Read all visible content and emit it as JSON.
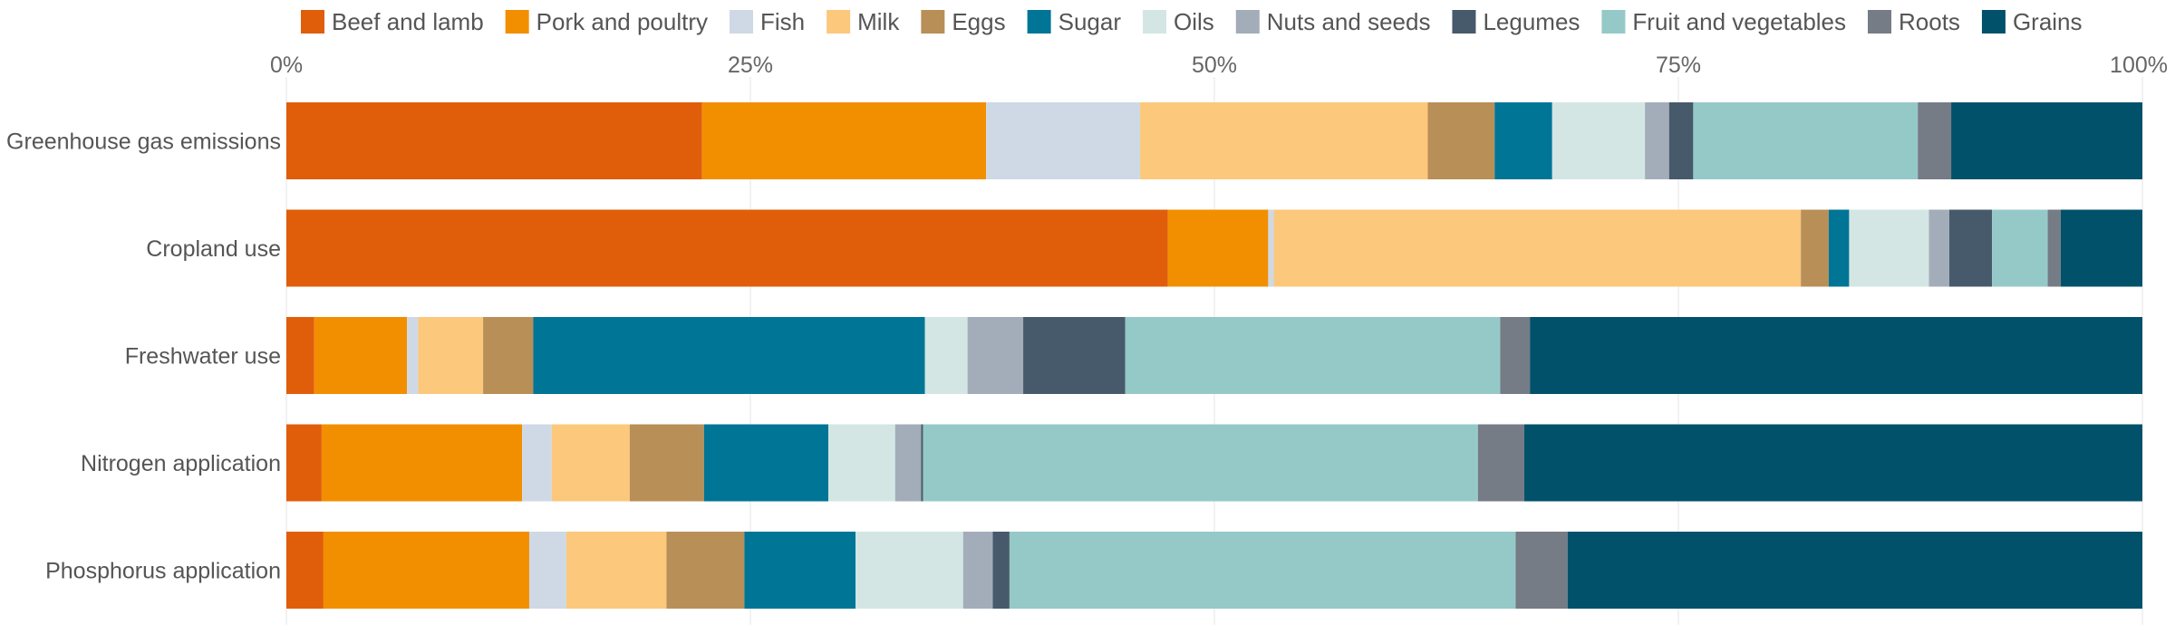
{
  "chart_data": {
    "type": "bar",
    "orientation": "horizontal",
    "stacked": "percent",
    "xlim": [
      0,
      100
    ],
    "x_ticks": [
      "0%",
      "25%",
      "50%",
      "75%",
      "100%"
    ],
    "x_tick_values": [
      0,
      25,
      50,
      75,
      100
    ],
    "legend_position": "top",
    "grid": true,
    "categories": [
      "Greenhouse gas emissions",
      "Cropland use",
      "Freshwater use",
      "Nitrogen application",
      "Phosphorus application"
    ],
    "series": [
      {
        "name": "Beef and lamb",
        "color": "#e05e0a",
        "values": [
          22.4,
          47.5,
          1.5,
          1.9,
          2.0
        ]
      },
      {
        "name": "Pork and poultry",
        "color": "#f28f00",
        "values": [
          15.3,
          5.4,
          5.0,
          10.8,
          11.1
        ]
      },
      {
        "name": "Fish",
        "color": "#cfd9e5",
        "values": [
          8.3,
          0.3,
          0.6,
          1.6,
          2.0
        ]
      },
      {
        "name": "Milk",
        "color": "#fbc87c",
        "values": [
          15.5,
          28.4,
          3.5,
          4.2,
          5.4
        ]
      },
      {
        "name": "Eggs",
        "color": "#b88f57",
        "values": [
          3.6,
          1.5,
          2.7,
          4.0,
          4.2
        ]
      },
      {
        "name": "Sugar",
        "color": "#007596",
        "values": [
          3.1,
          1.1,
          21.1,
          6.7,
          6.0
        ]
      },
      {
        "name": "Oils",
        "color": "#d3e6e4",
        "values": [
          5.0,
          4.3,
          2.3,
          3.6,
          5.8
        ]
      },
      {
        "name": "Nuts and seeds",
        "color": "#a2adb9",
        "values": [
          1.3,
          1.1,
          3.0,
          1.4,
          1.6
        ]
      },
      {
        "name": "Legumes",
        "color": "#475a6b",
        "values": [
          1.3,
          2.3,
          5.5,
          0.1,
          0.9
        ]
      },
      {
        "name": "Fruit and vegetables",
        "color": "#94c9c8",
        "values": [
          12.1,
          3.0,
          20.2,
          29.9,
          27.3
        ]
      },
      {
        "name": "Roots",
        "color": "#757c86",
        "values": [
          1.8,
          0.7,
          1.6,
          2.5,
          2.8
        ]
      },
      {
        "name": "Grains",
        "color": "#02516b",
        "values": [
          10.3,
          4.4,
          33.0,
          33.3,
          31.0
        ]
      }
    ]
  }
}
